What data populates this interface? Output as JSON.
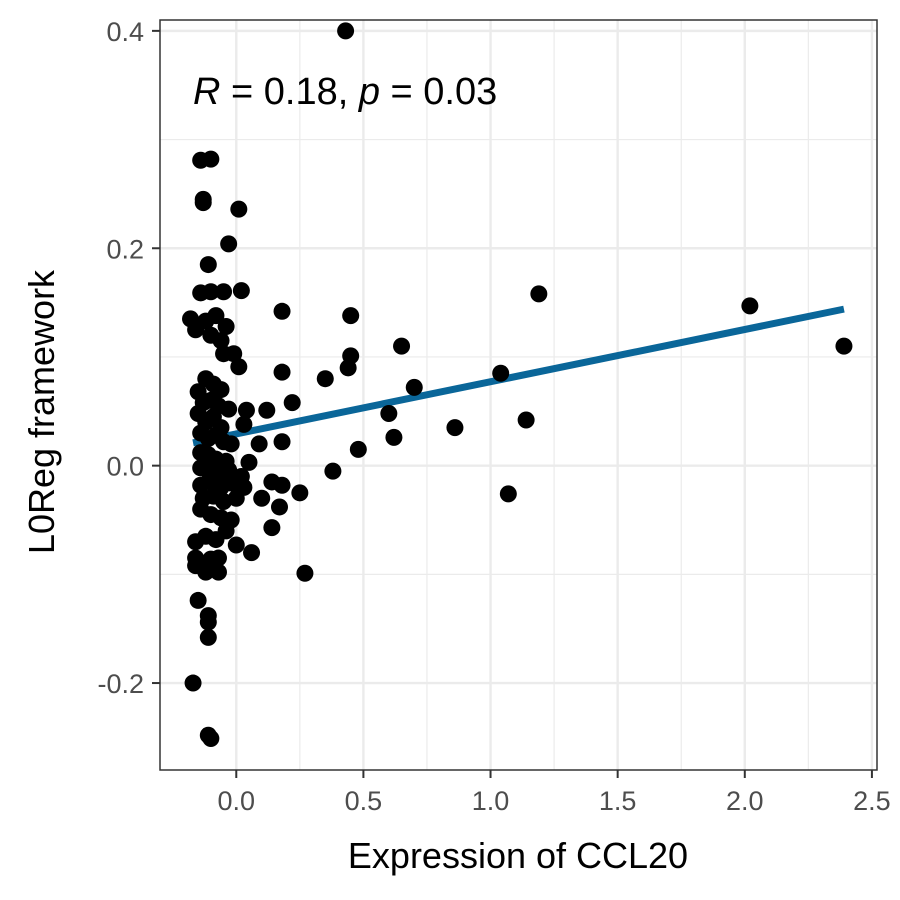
{
  "chart_data": {
    "type": "scatter",
    "xlabel": "Expression of CCL20",
    "ylabel": "L0Reg framework",
    "xlim": [
      -0.3,
      2.52
    ],
    "ylim": [
      -0.28,
      0.41
    ],
    "x_ticks": [
      0.0,
      0.5,
      1.0,
      1.5,
      2.0,
      2.5
    ],
    "x_tick_labels": [
      "0.0",
      "0.5",
      "1.0",
      "1.5",
      "2.0",
      "2.5"
    ],
    "y_ticks": [
      -0.2,
      0.0,
      0.2,
      0.4
    ],
    "y_tick_labels": [
      "-0.2",
      "0.0",
      "0.2",
      "0.4"
    ],
    "grid": true,
    "annotation": {
      "r_symbol": "R",
      "r_text": " = 0.18, ",
      "p_symbol": "p",
      "p_text": " = 0.03"
    },
    "colors": {
      "points": "#000000",
      "fit_line": "#0a6699",
      "grid": "#ebebeb",
      "border": "#333333"
    },
    "fit_line": {
      "x": [
        -0.17,
        2.39
      ],
      "y": [
        0.021,
        0.144
      ]
    },
    "points": [
      [
        0.43,
        0.4
      ],
      [
        -0.14,
        0.281
      ],
      [
        -0.1,
        0.282
      ],
      [
        -0.13,
        0.245
      ],
      [
        -0.13,
        0.242
      ],
      [
        0.01,
        0.236
      ],
      [
        -0.03,
        0.204
      ],
      [
        -0.11,
        0.185
      ],
      [
        -0.14,
        0.159
      ],
      [
        -0.1,
        0.16
      ],
      [
        -0.05,
        0.16
      ],
      [
        0.02,
        0.161
      ],
      [
        1.19,
        0.158
      ],
      [
        0.18,
        0.142
      ],
      [
        0.45,
        0.138
      ],
      [
        2.02,
        0.147
      ],
      [
        2.39,
        0.11
      ],
      [
        -0.18,
        0.135
      ],
      [
        -0.16,
        0.125
      ],
      [
        -0.12,
        0.133
      ],
      [
        -0.1,
        0.12
      ],
      [
        -0.08,
        0.138
      ],
      [
        -0.04,
        0.128
      ],
      [
        -0.06,
        0.115
      ],
      [
        -0.05,
        0.103
      ],
      [
        -0.01,
        0.103
      ],
      [
        0.01,
        0.091
      ],
      [
        0.45,
        0.101
      ],
      [
        0.44,
        0.09
      ],
      [
        0.65,
        0.11
      ],
      [
        0.35,
        0.08
      ],
      [
        0.18,
        0.086
      ],
      [
        1.04,
        0.085
      ],
      [
        0.7,
        0.072
      ],
      [
        -0.12,
        0.08
      ],
      [
        -0.09,
        0.075
      ],
      [
        -0.06,
        0.07
      ],
      [
        -0.15,
        0.068
      ],
      [
        -0.13,
        0.058
      ],
      [
        -0.1,
        0.06
      ],
      [
        -0.07,
        0.055
      ],
      [
        -0.03,
        0.052
      ],
      [
        0.04,
        0.051
      ],
      [
        0.12,
        0.051
      ],
      [
        0.22,
        0.058
      ],
      [
        0.6,
        0.048
      ],
      [
        -0.15,
        0.048
      ],
      [
        -0.12,
        0.04
      ],
      [
        -0.09,
        0.045
      ],
      [
        -0.06,
        0.035
      ],
      [
        0.03,
        0.038
      ],
      [
        0.86,
        0.035
      ],
      [
        1.14,
        0.042
      ],
      [
        -0.14,
        0.03
      ],
      [
        -0.11,
        0.025
      ],
      [
        -0.08,
        0.028
      ],
      [
        -0.05,
        0.022
      ],
      [
        -0.02,
        0.02
      ],
      [
        0.09,
        0.02
      ],
      [
        0.18,
        0.022
      ],
      [
        0.62,
        0.026
      ],
      [
        -0.14,
        0.012
      ],
      [
        -0.11,
        0.01
      ],
      [
        -0.08,
        0.006
      ],
      [
        -0.04,
        0.004
      ],
      [
        0.05,
        0.003
      ],
      [
        0.48,
        0.015
      ],
      [
        -0.14,
        -0.002
      ],
      [
        -0.11,
        -0.005
      ],
      [
        -0.07,
        -0.008
      ],
      [
        -0.03,
        -0.004
      ],
      [
        0.02,
        -0.01
      ],
      [
        0.38,
        -0.005
      ],
      [
        -0.14,
        -0.018
      ],
      [
        -0.1,
        -0.015
      ],
      [
        -0.06,
        -0.02
      ],
      [
        -0.02,
        -0.016
      ],
      [
        0.03,
        -0.02
      ],
      [
        0.14,
        -0.015
      ],
      [
        0.18,
        -0.018
      ],
      [
        0.25,
        -0.025
      ],
      [
        1.07,
        -0.026
      ],
      [
        -0.13,
        -0.03
      ],
      [
        -0.09,
        -0.028
      ],
      [
        -0.05,
        -0.033
      ],
      [
        0.0,
        -0.03
      ],
      [
        0.1,
        -0.03
      ],
      [
        0.17,
        -0.038
      ],
      [
        -0.14,
        -0.04
      ],
      [
        -0.1,
        -0.045
      ],
      [
        -0.06,
        -0.048
      ],
      [
        -0.02,
        -0.05
      ],
      [
        0.14,
        -0.057
      ],
      [
        -0.16,
        -0.07
      ],
      [
        -0.12,
        -0.065
      ],
      [
        -0.08,
        -0.068
      ],
      [
        -0.04,
        -0.06
      ],
      [
        0.0,
        -0.073
      ],
      [
        0.06,
        -0.08
      ],
      [
        -0.16,
        -0.085
      ],
      [
        -0.13,
        -0.09
      ],
      [
        -0.1,
        -0.086
      ],
      [
        -0.07,
        -0.085
      ],
      [
        -0.16,
        -0.092
      ],
      [
        -0.12,
        -0.098
      ],
      [
        -0.07,
        -0.098
      ],
      [
        0.27,
        -0.099
      ],
      [
        -0.15,
        -0.124
      ],
      [
        -0.11,
        -0.138
      ],
      [
        -0.11,
        -0.144
      ],
      [
        -0.11,
        -0.158
      ],
      [
        -0.17,
        -0.2
      ],
      [
        -0.11,
        -0.248
      ],
      [
        -0.1,
        -0.251
      ]
    ]
  }
}
